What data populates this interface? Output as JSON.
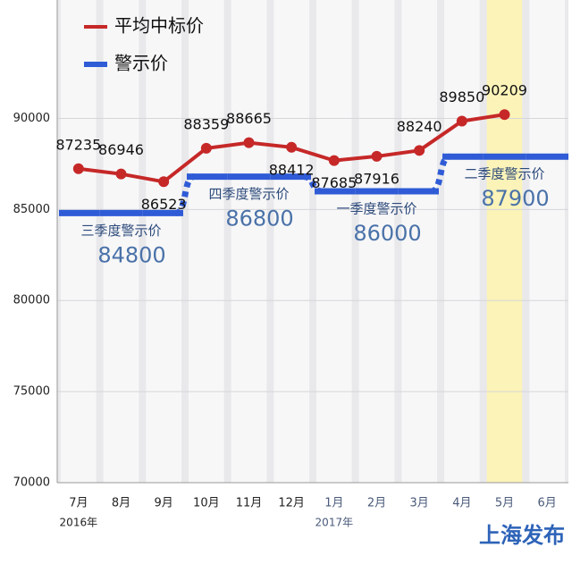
{
  "chart_data": {
    "type": "line",
    "categories": [
      "7月",
      "8月",
      "9月",
      "10月",
      "11月",
      "12月",
      "1月",
      "2月",
      "3月",
      "4月",
      "5月",
      "6月"
    ],
    "year_labels": [
      "2016年",
      null,
      null,
      null,
      null,
      null,
      "2017年",
      null,
      null,
      null,
      null,
      null
    ],
    "series": [
      {
        "name": "平均中标价",
        "color": "#c62828",
        "values": [
          87235,
          86946,
          86523,
          88359,
          88665,
          88412,
          87685,
          87916,
          88240,
          89850,
          90209,
          null
        ]
      },
      {
        "name": "警示价",
        "color": "#2f5bd6",
        "values": [
          84800,
          84800,
          84800,
          86800,
          86800,
          86800,
          86000,
          86000,
          86000,
          87900,
          87900,
          87900
        ],
        "segment_labels": [
          "三季度警示价",
          "四季度警示价",
          "一季度警示价",
          "二季度警示价"
        ]
      }
    ],
    "ylim": [
      70000,
      96500
    ],
    "yticks": [
      70000,
      75000,
      80000,
      85000,
      90000
    ],
    "highlight_index": 10,
    "highlight_color": "#fbf3b8",
    "source": "上海发布"
  }
}
